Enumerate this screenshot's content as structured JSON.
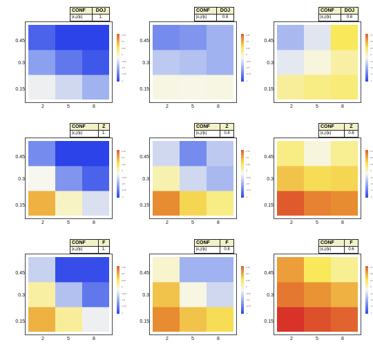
{
  "table_header": [
    "CONF",
    "|ε₁|/|ε|"
  ],
  "y_ticks": [
    "0.45",
    "0.3",
    "0.15"
  ],
  "x_ticks_default": [
    "2",
    "5",
    "8"
  ],
  "colorbar_ticks": [
    "0.75",
    "0.5",
    "0.25",
    "0",
    "-0.25",
    "-0.5",
    "-0.75",
    "-1"
  ],
  "panels": [
    {
      "conf": "DOJ",
      "ratio": "1.",
      "x_ticks": [
        "2",
        "5",
        "8"
      ]
    },
    {
      "conf": "DOJ",
      "ratio": "0.8",
      "x_ticks": [
        "2",
        "5",
        "8"
      ]
    },
    {
      "conf": "DOJ",
      "ratio": "0.6",
      "x_ticks": [
        "2",
        "5",
        "8"
      ]
    },
    {
      "conf": "Z",
      "ratio": "1.",
      "x_ticks": [
        "2",
        "5",
        "8"
      ]
    },
    {
      "conf": "Z",
      "ratio": "0.8",
      "x_ticks": [
        "2",
        "5",
        "8"
      ]
    },
    {
      "conf": "Z",
      "ratio": "0.6",
      "x_ticks": [
        "2",
        "5",
        "8"
      ]
    },
    {
      "conf": "F",
      "ratio": "1.",
      "x_ticks": [
        "2",
        "5",
        "8"
      ]
    },
    {
      "conf": "F",
      "ratio": "0.8",
      "x_ticks": [
        "2",
        "5",
        "8"
      ]
    },
    {
      "conf": "F",
      "ratio": "0.6",
      "x_ticks": [
        "2",
        "5",
        "8"
      ]
    }
  ],
  "colors": {
    "low": "#2b43e8",
    "mid": "#f7f7f2",
    "high": "#d8282a"
  },
  "chart_data": {
    "type": "heatmap",
    "layout": "3x3 grid of heatmaps",
    "x": [
      2,
      5,
      8
    ],
    "y": [
      0.15,
      0.3,
      0.45
    ],
    "color_scale": {
      "range": [
        -1,
        0.75
      ],
      "low_color": "#2b43e8",
      "high_color": "#d8282a"
    },
    "grids": [
      {
        "conf": "DOJ",
        "ratio": "1.",
        "values": [
          [
            -0.05,
            -0.2,
            -0.45
          ],
          [
            -0.55,
            -0.75,
            -0.9
          ],
          [
            -0.85,
            -1.0,
            -1.0
          ]
        ]
      },
      {
        "conf": "DOJ",
        "ratio": "0.8",
        "values": [
          [
            0.03,
            0.02,
            0.03
          ],
          [
            -0.3,
            -0.35,
            -0.45
          ],
          [
            -0.65,
            -0.6,
            -0.45
          ]
        ]
      },
      {
        "conf": "DOJ",
        "ratio": "0.6",
        "values": [
          [
            0.2,
            0.25,
            0.28
          ],
          [
            -0.1,
            0.05,
            0.18
          ],
          [
            -0.4,
            -0.12,
            0.35
          ]
        ]
      },
      {
        "conf": "Z",
        "ratio": "1.",
        "values": [
          [
            0.5,
            0.1,
            -0.15
          ],
          [
            0.0,
            -0.6,
            -0.85
          ],
          [
            -0.65,
            -1.0,
            -1.0
          ]
        ]
      },
      {
        "conf": "Z",
        "ratio": "0.8",
        "values": [
          [
            0.6,
            0.4,
            0.25
          ],
          [
            0.15,
            -0.2,
            -0.4
          ],
          [
            -0.2,
            -0.65,
            -0.3
          ]
        ]
      },
      {
        "conf": "Z",
        "ratio": "0.6",
        "values": [
          [
            0.7,
            0.62,
            0.6
          ],
          [
            0.45,
            0.38,
            0.4
          ],
          [
            0.25,
            0.05,
            0.22
          ]
        ]
      },
      {
        "conf": "F",
        "ratio": "1.",
        "values": [
          [
            0.5,
            0.2,
            -0.05
          ],
          [
            0.18,
            -0.35,
            -0.75
          ],
          [
            -0.25,
            -0.95,
            -0.95
          ]
        ]
      },
      {
        "conf": "F",
        "ratio": "0.8",
        "values": [
          [
            0.6,
            0.45,
            0.38
          ],
          [
            0.45,
            0.03,
            -0.2
          ],
          [
            0.08,
            -0.45,
            -0.45
          ]
        ]
      },
      {
        "conf": "F",
        "ratio": "0.6",
        "values": [
          [
            0.78,
            0.72,
            0.68
          ],
          [
            0.64,
            0.58,
            0.5
          ],
          [
            0.55,
            0.35,
            0.22
          ]
        ]
      }
    ]
  }
}
